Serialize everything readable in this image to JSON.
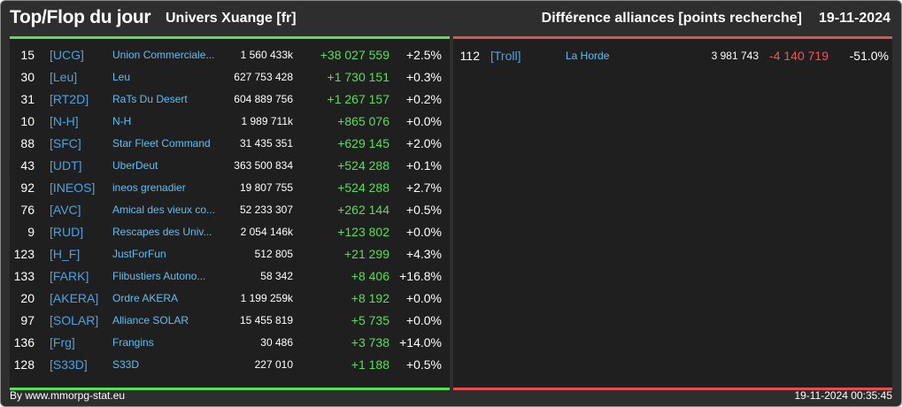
{
  "header": {
    "title": "Top/Flop du jour",
    "subtitle": "Univers Xuange [fr]",
    "right_title": "Différence alliances [points recherche]",
    "date": "19-11-2024"
  },
  "colors": {
    "positive": "#55e055",
    "negative": "#ff5050",
    "tag": "#4aa3e0",
    "name": "#5fbff2",
    "background": "#2e2e2e",
    "panel": "#1f1f1f"
  },
  "top": [
    {
      "rank": "15",
      "tag": "[UCG]",
      "name": "Union Commerciale...",
      "points": "1 560 433k",
      "diff": "+38 027 559",
      "pct": "+2.5%"
    },
    {
      "rank": "30",
      "tag": "[Leu]",
      "name": "Leu",
      "points": "627 753 428",
      "diff": "+1 730 151",
      "pct": "+0.3%"
    },
    {
      "rank": "31",
      "tag": "[RT2D]",
      "name": "RaTs Du Desert",
      "points": "604 889 756",
      "diff": "+1 267 157",
      "pct": "+0.2%"
    },
    {
      "rank": "10",
      "tag": "[N-H]",
      "name": "N-H",
      "points": "1 989 711k",
      "diff": "+865 076",
      "pct": "+0.0%"
    },
    {
      "rank": "88",
      "tag": "[SFC]",
      "name": "Star Fleet Command",
      "points": "31 435 351",
      "diff": "+629 145",
      "pct": "+2.0%"
    },
    {
      "rank": "43",
      "tag": "[UDT]",
      "name": "UberDeut",
      "points": "363 500 834",
      "diff": "+524 288",
      "pct": "+0.1%"
    },
    {
      "rank": "92",
      "tag": "[INEOS]",
      "name": "ineos grenadier",
      "points": "19 807 755",
      "diff": "+524 288",
      "pct": "+2.7%"
    },
    {
      "rank": "76",
      "tag": "[AVC]",
      "name": "Amical des vieux co...",
      "points": "52 233 307",
      "diff": "+262 144",
      "pct": "+0.5%"
    },
    {
      "rank": "9",
      "tag": "[RUD]",
      "name": "Rescapes des Univ...",
      "points": "2 054 146k",
      "diff": "+123 802",
      "pct": "+0.0%"
    },
    {
      "rank": "123",
      "tag": "[H_F]",
      "name": "JustForFun",
      "points": "512 805",
      "diff": "+21 299",
      "pct": "+4.3%"
    },
    {
      "rank": "133",
      "tag": "[FARK]",
      "name": "Flibustiers Autono...",
      "points": "58 342",
      "diff": "+8 406",
      "pct": "+16.8%"
    },
    {
      "rank": "20",
      "tag": "[AKERA]",
      "name": "Ordre AKERA",
      "points": "1 199 259k",
      "diff": "+8 192",
      "pct": "+0.0%"
    },
    {
      "rank": "97",
      "tag": "[SOLAR]",
      "name": "Alliance SOLAR",
      "points": "15 455 819",
      "diff": "+5 735",
      "pct": "+0.0%"
    },
    {
      "rank": "136",
      "tag": "[Frg]",
      "name": "Frangins",
      "points": "30 486",
      "diff": "+3 738",
      "pct": "+14.0%"
    },
    {
      "rank": "128",
      "tag": "[S33D]",
      "name": "S33D",
      "points": "227 010",
      "diff": "+1 188",
      "pct": "+0.5%"
    }
  ],
  "flop": [
    {
      "rank": "112",
      "tag": "[Troll]",
      "name": "La Horde",
      "points": "3 981 743",
      "diff": "-4 140 719",
      "pct": "-51.0%"
    }
  ],
  "footer": {
    "credit": "By www.mmorpg-stat.eu",
    "timestamp": "19-11-2024 00:35:45"
  }
}
